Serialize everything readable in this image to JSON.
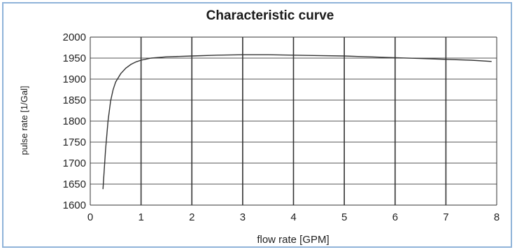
{
  "chart_data": {
    "type": "line",
    "title": "Characteristic curve",
    "xlabel": "flow rate [GPM]",
    "ylabel": "pulse rate [1/Gal]",
    "xlim": [
      0,
      8
    ],
    "ylim": [
      1600,
      2000
    ],
    "x_ticks": [
      "0",
      "1",
      "2",
      "3",
      "4",
      "5",
      "6",
      "7",
      "8"
    ],
    "y_ticks": [
      "1600",
      "1650",
      "1700",
      "1750",
      "1800",
      "1850",
      "1900",
      "1950",
      "2000"
    ],
    "grid": true,
    "legend": "none",
    "line_color": "#333333",
    "series": [
      {
        "x": [
          0.25,
          0.3,
          0.35,
          0.4,
          0.45,
          0.5,
          0.6,
          0.7,
          0.8,
          0.9,
          1.0,
          1.2,
          1.5,
          2.0,
          2.5,
          3.0,
          3.5,
          4.0,
          4.5,
          5.0,
          5.5,
          6.0,
          6.5,
          7.0,
          7.5,
          7.9
        ],
        "y": [
          1638,
          1730,
          1800,
          1848,
          1875,
          1893,
          1913,
          1926,
          1935,
          1941,
          1945,
          1950,
          1953,
          1955,
          1957,
          1958,
          1958,
          1957,
          1956,
          1955,
          1953,
          1951,
          1949,
          1947,
          1945,
          1942
        ]
      }
    ]
  }
}
